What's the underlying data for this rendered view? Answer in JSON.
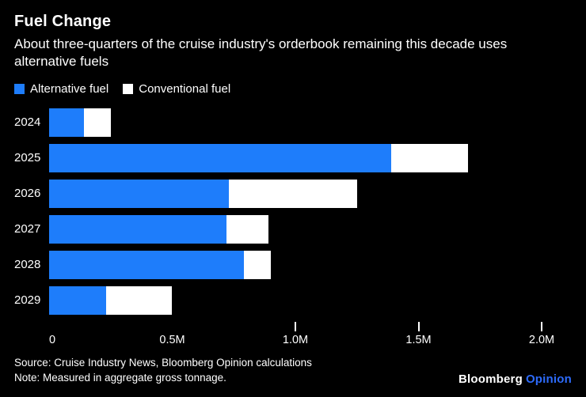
{
  "header": {
    "title": "Fuel Change",
    "subtitle": "About three-quarters of the cruise industry's orderbook remaining this decade uses alternative fuels"
  },
  "colors": {
    "alternative_fuel": "#1e7dfb",
    "conventional_fuel": "#ffffff",
    "background": "#000000",
    "brand_accent": "#2d6bfb"
  },
  "legend": {
    "items": [
      {
        "label": "Alternative fuel",
        "color": "#1e7dfb"
      },
      {
        "label": "Conventional fuel",
        "color": "#ffffff"
      }
    ]
  },
  "chart_data": {
    "type": "bar",
    "orientation": "horizontal",
    "stacked": true,
    "title": "Fuel Change",
    "categories": [
      "2024",
      "2025",
      "2026",
      "2027",
      "2028",
      "2029"
    ],
    "series": [
      {
        "name": "Alternative fuel",
        "color": "#1e7dfb",
        "values": [
          0.14,
          1.39,
          0.73,
          0.72,
          0.79,
          0.23
        ]
      },
      {
        "name": "Conventional fuel",
        "color": "#ffffff",
        "values": [
          0.11,
          0.31,
          0.52,
          0.17,
          0.11,
          0.27
        ]
      }
    ],
    "xlabel": "",
    "ylabel": "",
    "xlim": [
      0,
      2.0
    ],
    "unit": "M (gross tonnage)",
    "grid": false,
    "legend_position": "top-left",
    "x_ticks": [
      {
        "label": "0",
        "value": 0,
        "show_mark": false
      },
      {
        "label": "0.5M",
        "value": 0.5,
        "show_mark": false
      },
      {
        "label": "1.0M",
        "value": 1.0,
        "show_mark": true
      },
      {
        "label": "1.5M",
        "value": 1.5,
        "show_mark": true
      },
      {
        "label": "2.0M",
        "value": 2.0,
        "show_mark": true
      }
    ]
  },
  "footer": {
    "source": "Source: Cruise Industry News, Bloomberg Opinion calculations",
    "note": "Note: Measured in aggregate gross tonnage.",
    "brand_name": "Bloomberg",
    "brand_suffix": "Opinion"
  }
}
